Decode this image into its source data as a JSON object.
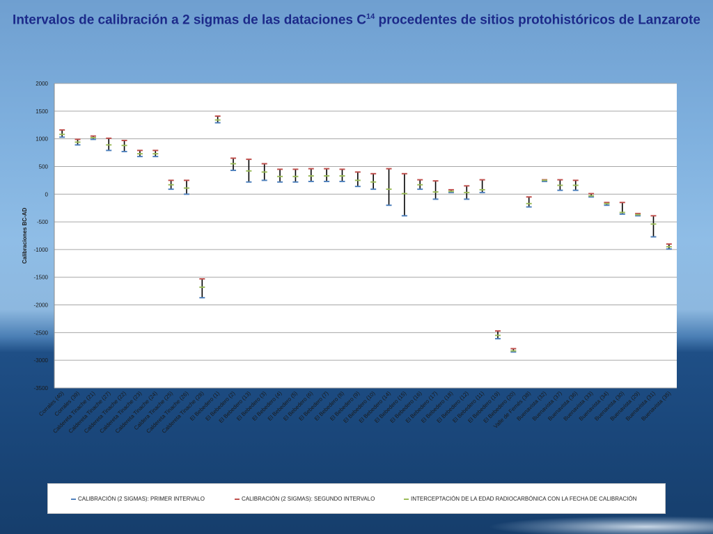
{
  "title": {
    "main": "Intervalos de calibración a 2 sigmas de las dataciones C",
    "sup": "14",
    "rest": " procedentes de sitios protohistóricos de Lanzarote"
  },
  "colors": {
    "first": "#4f81bd",
    "second": "#c0504d",
    "intercept": "#9bbb59",
    "bar": "#000000",
    "grid": "#a6a6a6"
  },
  "legend": [
    {
      "label": "CALIBRACIÓN (2 SIGMAS): PRIMER INTERVALO",
      "color": "#4f81bd"
    },
    {
      "label": "CALIBRACIÓN (2 SIGMAS): SEGUNDO INTERVALO",
      "color": "#c0504d"
    },
    {
      "label": "INTERCEPTACIÓN DE LA EDAD RADIOCARBÓNICA CON LA FECHA DE CALIBRACIÓN",
      "color": "#9bbb59"
    }
  ],
  "chart_data": {
    "type": "error-bar",
    "ylabel": "Calibraciones BC-AD",
    "ylim": [
      -3500,
      2000
    ],
    "yticks": [
      2000,
      1500,
      1000,
      500,
      0,
      -500,
      -1000,
      -1500,
      -2000,
      -2500,
      -3000,
      -3500
    ],
    "grid": true,
    "legend_position": "bottom",
    "categories": [
      "Corrales (40)",
      "Corrales (39)",
      "Caldereta Tinache (21)",
      "Caldereta Tinache (27)",
      "Caldereta Tinache (22)",
      "Caldereta Tinache (23)",
      "Caldereta Tinache (24)",
      "Caldera Tinache (25)",
      "Caldereta Tinache (26)",
      "Caldereta Tinache (28)",
      "El Bebedero (1)",
      "El Bebedero (2)",
      "El Bebedero (13)",
      "El Bebedero (3)",
      "El Bebedero (4)",
      "El Bebedero (5)",
      "El Bebedero (6)",
      "El Bebedero (7)",
      "El Bebedero (8)",
      "El Bebedero (9)",
      "El Bebedero (10)",
      "El Bebedero (14)",
      "El Bebedero (15)",
      "El Bebedero (16)",
      "El Bebedero (17)",
      "El Bebedero (18)",
      "El Bebedero (12)",
      "El Bebedero (11)",
      "El Bebedero (19)",
      "El Bebedero (20)",
      "Valle de Femés (38)",
      "Buenavista (32)",
      "Buenavista (37)",
      "Buenavista (36)",
      "Buenavista (33)",
      "Buenavista (34)",
      "Buenavista (30)",
      "Buenavista (29)",
      "Buenavista (31)",
      "Buenavista (35)"
    ],
    "series": [
      {
        "name": "CALIBRACIÓN (2 SIGMAS): PRIMER INTERVALO",
        "values": [
          1030,
          890,
          990,
          790,
          770,
          680,
          680,
          90,
          0,
          -1870,
          1290,
          430,
          220,
          250,
          220,
          220,
          230,
          230,
          230,
          140,
          90,
          -200,
          -390,
          90,
          -90,
          30,
          -90,
          30,
          -2610,
          -2850,
          -230,
          230,
          70,
          70,
          -50,
          -200,
          -360,
          -390,
          -770,
          -990
        ]
      },
      {
        "name": "CALIBRACIÓN (2 SIGMAS): SEGUNDO INTERVALO",
        "values": [
          1160,
          990,
          1050,
          1010,
          970,
          790,
          790,
          250,
          250,
          -1530,
          1410,
          650,
          630,
          550,
          450,
          450,
          460,
          460,
          450,
          400,
          370,
          460,
          370,
          260,
          240,
          80,
          150,
          260,
          -2470,
          -2790,
          -50,
          260,
          260,
          250,
          10,
          -150,
          -150,
          -350,
          -390,
          -900
        ]
      },
      {
        "name": "INTERCEPTACIÓN DE LA EDAD RADIOCARBÓNICA CON LA FECHA DE CALIBRACIÓN",
        "values": [
          1080,
          940,
          1020,
          890,
          880,
          730,
          730,
          170,
          110,
          -1680,
          1340,
          550,
          420,
          400,
          320,
          320,
          330,
          330,
          330,
          250,
          220,
          90,
          10,
          170,
          40,
          50,
          30,
          80,
          -2550,
          -2830,
          -170,
          250,
          160,
          160,
          -30,
          -170,
          -330,
          -370,
          -540,
          -950
        ]
      }
    ]
  }
}
